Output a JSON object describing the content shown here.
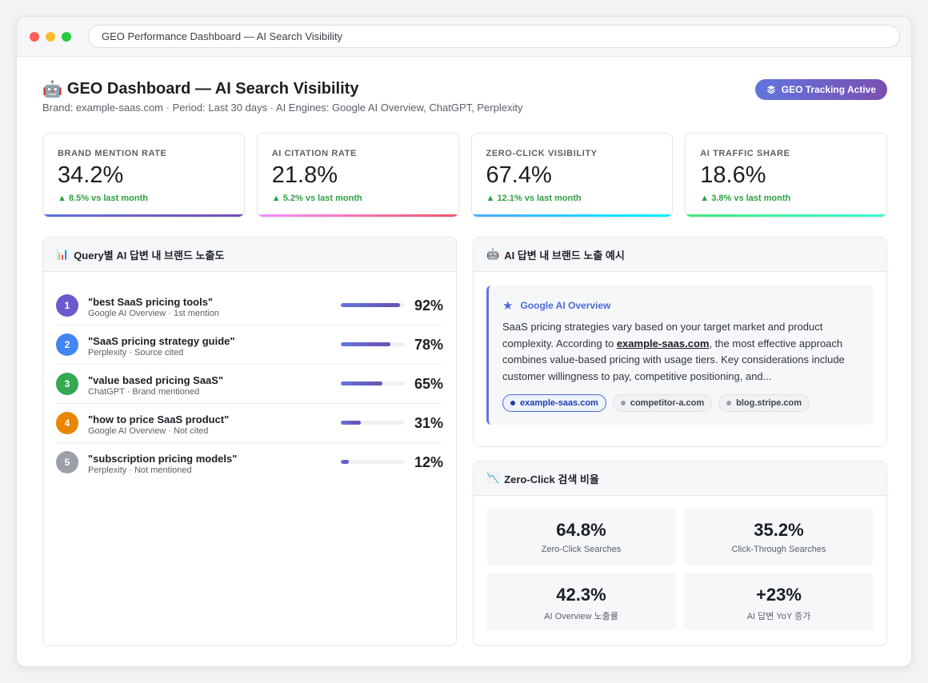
{
  "browser": {
    "url_text": "GEO Performance Dashboard — AI Search Visibility"
  },
  "header": {
    "emoji": "🤖",
    "title": "GEO Dashboard — AI Search Visibility",
    "subtitle": "Brand: example-saas.com · Period: Last 30 days · AI Engines: Google AI Overview, ChatGPT, Perplexity",
    "badge_label": "GEO Tracking Active",
    "badge_icon": "layers-icon"
  },
  "kpis": [
    {
      "label": "BRAND MENTION RATE",
      "value": "34.2%",
      "delta": "▲ 8.5% vs last month",
      "accent_from": "#6175de",
      "accent_to": "#7a4fb0"
    },
    {
      "label": "AI CITATION RATE",
      "value": "21.8%",
      "delta": "▲ 5.2% vs last month",
      "accent_from": "#f093fb",
      "accent_to": "#f5576c"
    },
    {
      "label": "ZERO-CLICK VISIBILITY",
      "value": "67.4%",
      "delta": "▲ 12.1% vs last month",
      "accent_from": "#4facfe",
      "accent_to": "#00f2fe"
    },
    {
      "label": "AI TRAFFIC SHARE",
      "value": "18.6%",
      "delta": "▲ 3.8% vs last month",
      "accent_from": "#43e97b",
      "accent_to": "#38f9d7"
    }
  ],
  "queries_panel": {
    "icon": "📊",
    "title": "Query별 AI 답변 내 브랜드 노출도",
    "items": [
      {
        "rank": "1",
        "query": "\"best SaaS pricing tools\"",
        "meta": "Google AI Overview · 1st mention",
        "pct_label": "92%",
        "value": 0.92,
        "color": "#6a5acd"
      },
      {
        "rank": "2",
        "query": "\"SaaS pricing strategy guide\"",
        "meta": "Perplexity · Source cited",
        "pct_label": "78%",
        "value": 0.78,
        "color": "#4285f4"
      },
      {
        "rank": "3",
        "query": "\"value based pricing SaaS\"",
        "meta": "ChatGPT · Brand mentioned",
        "pct_label": "65%",
        "value": 0.65,
        "color": "#34a853"
      },
      {
        "rank": "4",
        "query": "\"how to price SaaS product\"",
        "meta": "Google AI Overview · Not cited",
        "pct_label": "31%",
        "value": 0.31,
        "color": "#ea8600"
      },
      {
        "rank": "5",
        "query": "\"subscription pricing models\"",
        "meta": "Perplexity · Not mentioned",
        "pct_label": "12%",
        "value": 0.12,
        "color": "#9aa0a6"
      }
    ]
  },
  "example_panel": {
    "icon": "🤖",
    "title": "AI 답변 내 브랜드 노출 예시",
    "source_icon": "star-icon",
    "source_name": "Google AI Overview",
    "text_before": "SaaS pricing strategies vary based on your target market and product complexity. According to ",
    "text_brand": "example-saas.com",
    "text_after": ", the most effective approach combines value-based pricing with usage tiers. Key considerations include customer willingness to pay, competitive positioning, and...",
    "chips": [
      {
        "label": "example-saas.com",
        "active": true
      },
      {
        "label": "competitor-a.com",
        "active": false
      },
      {
        "label": "blog.stripe.com",
        "active": false
      }
    ]
  },
  "zero_click_panel": {
    "icon": "📉",
    "title": "Zero-Click 검색 비율",
    "stats": [
      {
        "value": "64.8%",
        "label": "Zero-Click Searches"
      },
      {
        "value": "35.2%",
        "label": "Click-Through Searches"
      },
      {
        "value": "42.3%",
        "label": "AI Overview 노출률"
      },
      {
        "value": "+23%",
        "label": "AI 답변 YoY 증가"
      }
    ]
  }
}
